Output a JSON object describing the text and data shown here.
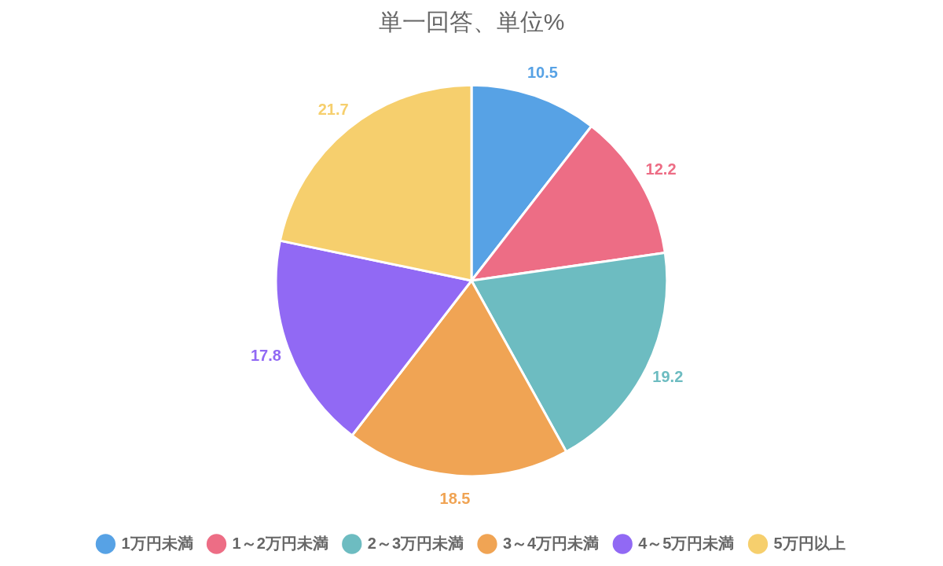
{
  "chart_data": {
    "type": "pie",
    "subtitle": "単一回答、単位%",
    "categories": [
      "1万円未満",
      "1～2万円未満",
      "2～3万円未満",
      "3～4万円未満",
      "4～5万円未満",
      "5万円以上"
    ],
    "values": [
      10.5,
      12.2,
      19.2,
      18.5,
      17.8,
      21.7
    ],
    "colors": [
      "#57a2e5",
      "#ed6d85",
      "#6dbcc1",
      "#f0a454",
      "#9169f4",
      "#f6cf6d"
    ],
    "data_labels": true,
    "legend": "bottom"
  }
}
